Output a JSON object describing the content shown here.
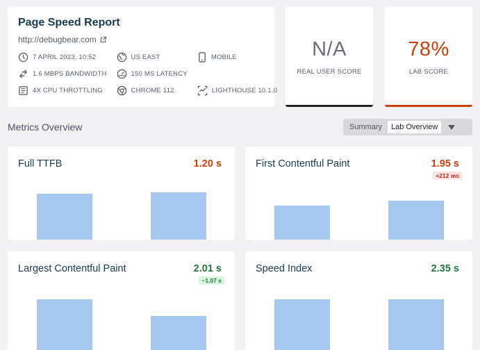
{
  "report": {
    "title": "Page Speed Report",
    "url": "http://debugbear.com",
    "meta": [
      {
        "icon": "clock-icon",
        "text": "7 APRIL 2023, 10:52"
      },
      {
        "icon": "globe-icon",
        "text": "US EAST"
      },
      {
        "icon": "mobile-icon",
        "text": "MOBILE"
      },
      {
        "icon": "bandwidth-icon",
        "text": "1.6 MBPS BANDWIDTH"
      },
      {
        "icon": "latency-icon",
        "text": "150 MS LATENCY"
      },
      {
        "icon": "cpu-icon",
        "text": "4X CPU THROTTLING"
      },
      {
        "icon": "chrome-icon",
        "text": "CHROME 112"
      },
      {
        "icon": "lighthouse-icon",
        "text": "LIGHTHOUSE 10.1.0"
      }
    ]
  },
  "scores": {
    "rum": {
      "value": "N/A",
      "label": "REAL USER SCORE"
    },
    "lab": {
      "value": "78%",
      "label": "LAB SCORE"
    }
  },
  "section": {
    "title": "Metrics Overview",
    "toggle": {
      "options": [
        "Summary",
        "Lab Overview"
      ],
      "selected": "Lab Overview"
    }
  },
  "metrics": [
    {
      "name": "Full TTFB",
      "value": "1.20 s",
      "status": "slow",
      "delta": "",
      "bars": [
        0.66,
        0.68
      ]
    },
    {
      "name": "First Contentful Paint",
      "value": "1.95 s",
      "status": "slow",
      "delta": "+212 ms",
      "bars": [
        0.49,
        0.56
      ]
    },
    {
      "name": "Largest Contentful Paint",
      "value": "2.01 s",
      "status": "good",
      "delta": "−1.07 s",
      "bars": [
        0.73,
        0.49
      ]
    },
    {
      "name": "Speed Index",
      "value": "2.35 s",
      "status": "good",
      "delta": "",
      "bars": [
        0.73,
        0.73
      ]
    }
  ],
  "colors": {
    "slow": "#c8410c",
    "good": "#217a3c",
    "bar": "#a6c8f0",
    "rum_border": "#222222",
    "lab_border": "#c8410c"
  }
}
